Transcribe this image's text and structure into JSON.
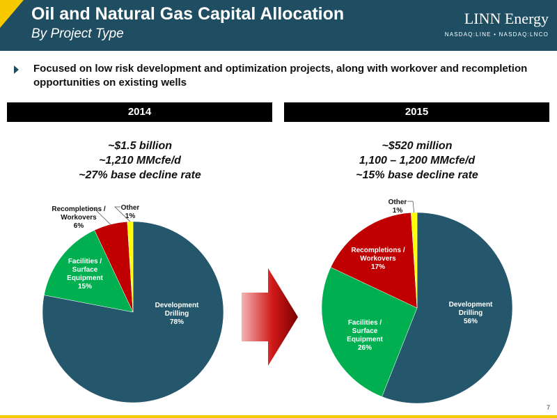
{
  "header": {
    "title": "Oil and Natural Gas Capital Allocation",
    "subtitle": "By Project Type",
    "logo_name": "LINN Energy",
    "logo_ticker": "NASDAQ:LINE • NASDAQ:LNCO",
    "background_color": "#1f4e63",
    "accent_color": "#f6c900"
  },
  "bullet": {
    "icon": "triangle-bullet-icon",
    "text": "Focused on low risk development and optimization projects, along with workover and recompletion opportunities on existing wells"
  },
  "panels": [
    {
      "year": "2014",
      "stats": [
        "~$1.5 billion",
        "~1,210 MMcfe/d",
        "~27% base decline rate"
      ]
    },
    {
      "year": "2015",
      "stats": [
        "~$520 million",
        "1,100 – 1,200 MMcfe/d",
        "~15% base decline rate"
      ]
    }
  ],
  "arrow_icon": "right-arrow-icon",
  "page_number": "7",
  "chart_data": [
    {
      "type": "pie",
      "title": "2014",
      "slices": [
        {
          "label": "Development Drilling",
          "value": 78,
          "value_label": "78%",
          "color": "#24576b"
        },
        {
          "label": "Facilities / Surface Equipment",
          "value": 15,
          "value_label": "15%",
          "color": "#00b050"
        },
        {
          "label": "Recompletions / Workovers",
          "value": 6,
          "value_label": "6%",
          "color": "#c00000"
        },
        {
          "label": "Other",
          "value": 1,
          "value_label": "1%",
          "color": "#ffff00"
        }
      ]
    },
    {
      "type": "pie",
      "title": "2015",
      "slices": [
        {
          "label": "Development Drilling",
          "value": 56,
          "value_label": "56%",
          "color": "#24576b"
        },
        {
          "label": "Facilities / Surface Equipment",
          "value": 26,
          "value_label": "26%",
          "color": "#00b050"
        },
        {
          "label": "Recompletions / Workovers",
          "value": 17,
          "value_label": "17%",
          "color": "#c00000"
        },
        {
          "label": "Other",
          "value": 1,
          "value_label": "1%",
          "color": "#ffff00"
        }
      ]
    }
  ]
}
